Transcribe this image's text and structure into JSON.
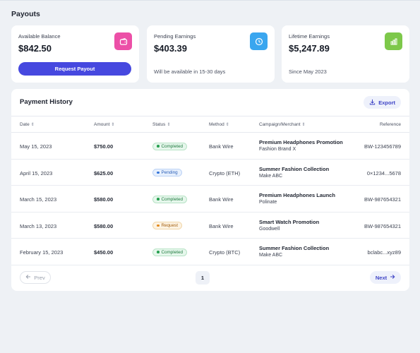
{
  "page": {
    "title": "Payouts"
  },
  "cards": {
    "available": {
      "label": "Available Balance",
      "value": "$842.50",
      "button": "Request Payout",
      "icon": "wallet-icon",
      "icon_color": "#ec4fa7"
    },
    "pending": {
      "label": "Pending Earnings",
      "value": "$403.39",
      "note": "Will be available in 15-30 days",
      "icon": "clock-icon",
      "icon_color": "#3aa6ef"
    },
    "lifetime": {
      "label": "Lifetime Earnings",
      "value": "$5,247.89",
      "note": "Since May 2023",
      "icon": "bar-chart-icon",
      "icon_color": "#7dc84a"
    }
  },
  "history": {
    "title": "Payment History",
    "export_label": "Export",
    "columns": {
      "date": "Date",
      "amount": "Amount",
      "status": "Status",
      "method": "Method",
      "campaign": "Campaign/Merchant",
      "reference": "Reference"
    },
    "rows": [
      {
        "date": "May 15, 2023",
        "amount": "$750.00",
        "status": "Completed",
        "status_type": "completed",
        "method": "Bank Wire",
        "campaign": "Premium Headphones Promotion",
        "merchant": "Fashion Brand X",
        "reference": "BW-123456789"
      },
      {
        "date": "April 15, 2023",
        "amount": "$625.00",
        "status": "Pending",
        "status_type": "pending",
        "method": "Crypto (ETH)",
        "campaign": "Summer Fashion Collection",
        "merchant": "Make ABC",
        "reference": "0×1234...5678"
      },
      {
        "date": "March 15, 2023",
        "amount": "$580.00",
        "status": "Completed",
        "status_type": "completed",
        "method": "Bank Wire",
        "campaign": "Premium Headphones Launch",
        "merchant": "Polinate",
        "reference": "BW-987654321"
      },
      {
        "date": "March 13, 2023",
        "amount": "$580.00",
        "status": "Request",
        "status_type": "request",
        "method": "Bank Wire",
        "campaign": "Smart Watch Promotion",
        "merchant": "Goodwell",
        "reference": "BW-987654321"
      },
      {
        "date": "February 15, 2023",
        "amount": "$450.00",
        "status": "Completed",
        "status_type": "completed",
        "method": "Crypto (BTC)",
        "campaign": "Summer Fashion Collection",
        "merchant": "Make ABC",
        "reference": "bclabc...xyz89"
      }
    ],
    "pagination": {
      "prev": "Prev",
      "page": "1",
      "next": "Next"
    }
  },
  "colors": {
    "accent": "#4648df",
    "page_bg": "#eef1f5"
  }
}
